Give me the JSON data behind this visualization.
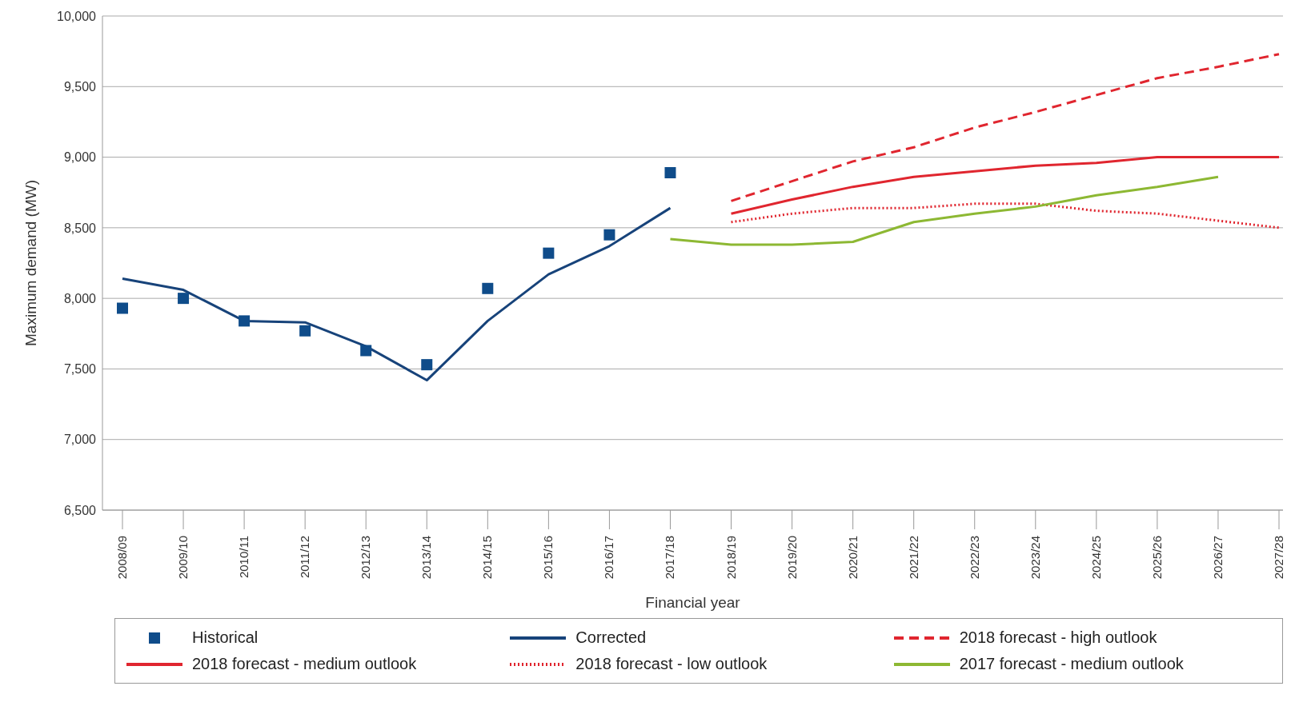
{
  "chart_data": {
    "type": "line",
    "xlabel": "Financial year",
    "ylabel": "Maximum demand (MW)",
    "categories": [
      "2008/09",
      "2009/10",
      "2010/11",
      "2011/12",
      "2012/13",
      "2013/14",
      "2014/15",
      "2015/16",
      "2016/17",
      "2017/18",
      "2018/19",
      "2019/20",
      "2020/21",
      "2021/22",
      "2022/23",
      "2023/24",
      "2024/25",
      "2025/26",
      "2026/27",
      "2027/28"
    ],
    "ylim": [
      6500,
      10000
    ],
    "yticks": [
      {
        "value": 6500,
        "label": "6,500"
      },
      {
        "value": 7000,
        "label": "7,000"
      },
      {
        "value": 7500,
        "label": "7,500"
      },
      {
        "value": 8000,
        "label": "8,000"
      },
      {
        "value": 8500,
        "label": "8,500"
      },
      {
        "value": 9000,
        "label": "9,000"
      },
      {
        "value": 9500,
        "label": "9,500"
      },
      {
        "value": 10000,
        "label": "10,000"
      }
    ],
    "grid": "y",
    "legend": "bottom",
    "series": [
      {
        "name": "Historical",
        "type": "scatter",
        "marker": "square",
        "color": "#0f4c8a",
        "values": [
          7930,
          8000,
          7840,
          7770,
          7630,
          7530,
          8070,
          8320,
          8450,
          8890,
          null,
          null,
          null,
          null,
          null,
          null,
          null,
          null,
          null,
          null
        ]
      },
      {
        "name": "Corrected",
        "line_style": "solid",
        "color": "#17437a",
        "values": [
          8140,
          8060,
          7840,
          7830,
          7660,
          7420,
          7840,
          8170,
          8370,
          8640,
          null,
          null,
          null,
          null,
          null,
          null,
          null,
          null,
          null,
          null
        ]
      },
      {
        "name": "2018 forecast - high outlook",
        "line_style": "dashed",
        "color": "#e0262f",
        "values": [
          null,
          null,
          null,
          null,
          null,
          null,
          null,
          null,
          null,
          null,
          8690,
          8830,
          8970,
          9070,
          9210,
          9320,
          9440,
          9560,
          9640,
          9730
        ]
      },
      {
        "name": "2018 forecast - medium outlook",
        "line_style": "solid",
        "color": "#e0262f",
        "values": [
          null,
          null,
          null,
          null,
          null,
          null,
          null,
          null,
          null,
          null,
          8600,
          8700,
          8790,
          8860,
          8900,
          8940,
          8960,
          9000,
          9000,
          9000
        ]
      },
      {
        "name": "2018 forecast - low outlook",
        "line_style": "dotted",
        "color": "#e0262f",
        "values": [
          null,
          null,
          null,
          null,
          null,
          null,
          null,
          null,
          null,
          null,
          8540,
          8600,
          8640,
          8640,
          8670,
          8670,
          8620,
          8600,
          8550,
          8500
        ]
      },
      {
        "name": "2017 forecast - medium outlook",
        "line_style": "solid",
        "color": "#8db833",
        "values": [
          null,
          null,
          null,
          null,
          null,
          null,
          null,
          null,
          null,
          8420,
          8380,
          8380,
          8400,
          8540,
          8600,
          8650,
          8730,
          8790,
          8860,
          null
        ]
      }
    ]
  }
}
